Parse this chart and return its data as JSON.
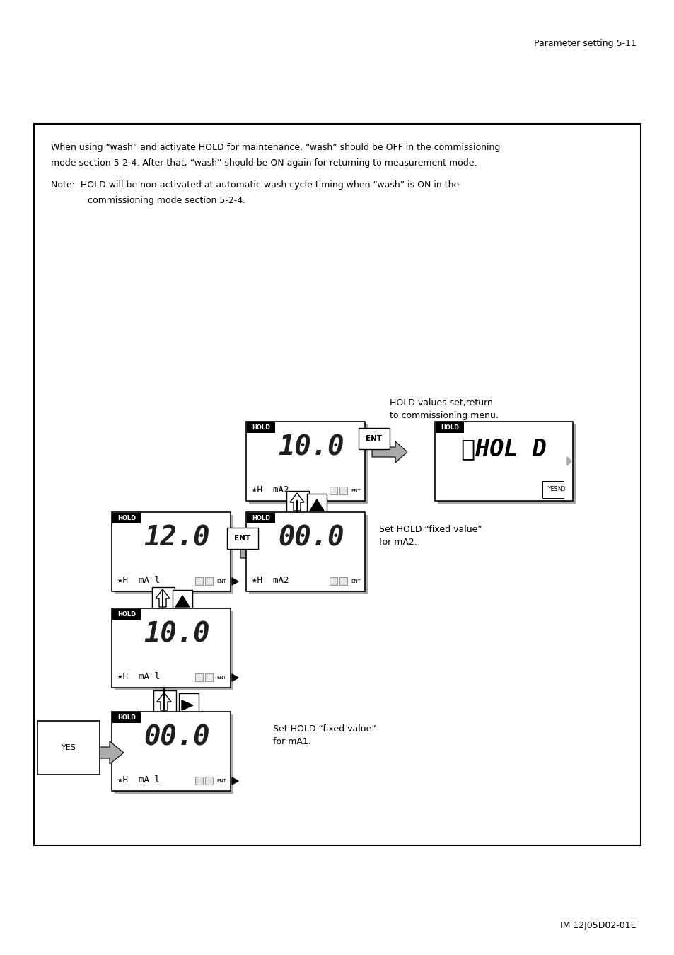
{
  "page_header": "Parameter setting 5-11",
  "page_footer": "IM 12J05D02-01E",
  "main_text_line1": "When using “wash” and activate HOLD for maintenance, “wash” should be OFF in the commissioning",
  "main_text_line2": "mode section 5-2-4. After that, “wash” should be ON again for returning to measurement mode.",
  "note_line1": "Note:  HOLD will be non-activated at automatic wash cycle timing when “wash” is ON in the",
  "note_line2": "             commissioning mode section 5-2-4.",
  "annotation1_line1": "HOLD values set,return",
  "annotation1_line2": "to commissioning menu.",
  "annotation2_line1": "Set HOLD “fixed value”",
  "annotation2_line2": "for mA2.",
  "annotation3_line1": "Set HOLD “fixed value”",
  "annotation3_line2": "for mA1.",
  "bg_color": "#ffffff"
}
